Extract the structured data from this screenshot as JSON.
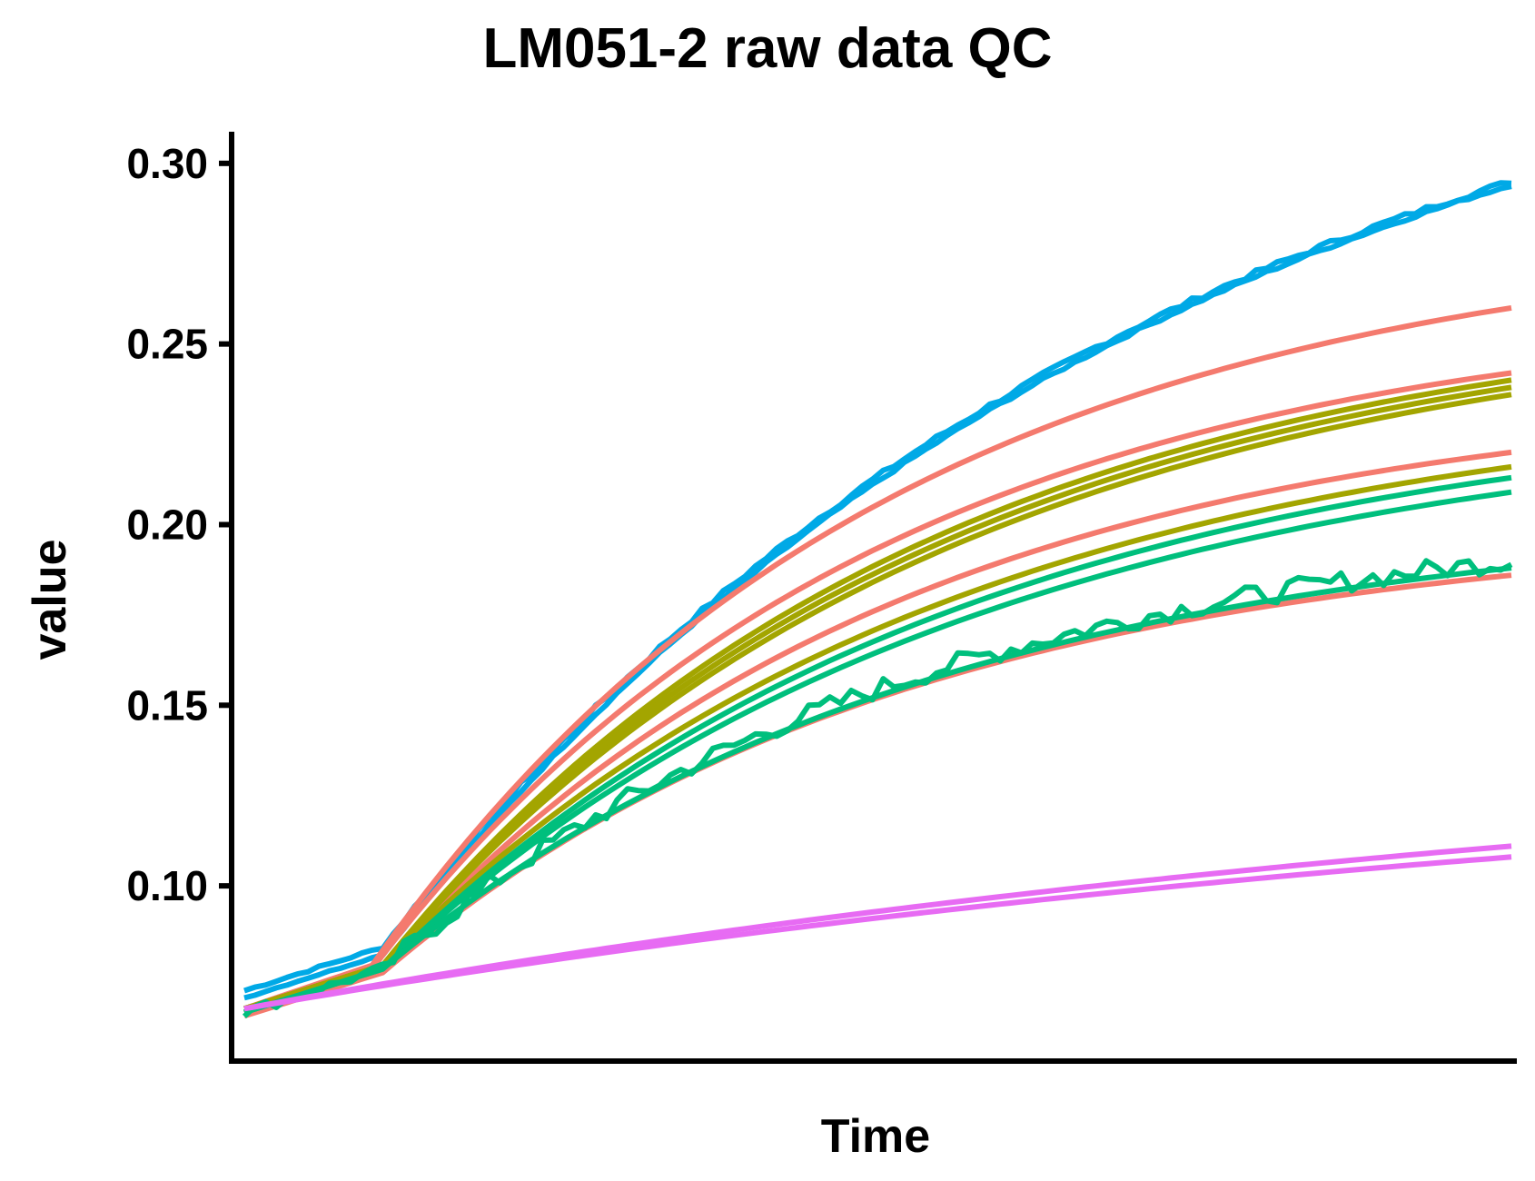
{
  "chart_data": {
    "type": "line",
    "title": "LM051-2 raw data QC",
    "xlabel": "Time",
    "ylabel": "value",
    "x_ticks_shown": false,
    "ylim": [
      0.0515,
      0.3075
    ],
    "y_ticks": [
      "0.10",
      "0.15",
      "0.20",
      "0.25",
      "0.30"
    ],
    "y_tick_values": [
      0.1,
      0.15,
      0.2,
      0.25,
      0.3
    ],
    "grid": false,
    "legend": "none",
    "n_points": 120,
    "x_range": [
      0,
      119
    ],
    "colors": {
      "blue": "#00A9E6",
      "red": "#F47A6E",
      "olive": "#A3A500",
      "green": "#00BF7D",
      "magenta": "#E76BF3"
    },
    "series": [
      {
        "color": "blue",
        "start": 0.071,
        "end": 0.295,
        "lag": 13,
        "k": 1.45,
        "noise": 0.0015
      },
      {
        "color": "blue",
        "start": 0.069,
        "end": 0.294,
        "lag": 13,
        "k": 1.45,
        "noise": 0.0008
      },
      {
        "color": "red",
        "start": 0.066,
        "end": 0.26,
        "lag": 12,
        "k": 2.2,
        "noise": 0
      },
      {
        "color": "red",
        "start": 0.065,
        "end": 0.242,
        "lag": 12,
        "k": 2.25,
        "noise": 0
      },
      {
        "color": "red",
        "start": 0.065,
        "end": 0.22,
        "lag": 13,
        "k": 2.2,
        "noise": 0
      },
      {
        "color": "red",
        "start": 0.064,
        "end": 0.186,
        "lag": 13,
        "k": 2.15,
        "noise": 0
      },
      {
        "color": "olive",
        "start": 0.066,
        "end": 0.24,
        "lag": 13,
        "k": 2.1,
        "noise": 0
      },
      {
        "color": "olive",
        "start": 0.066,
        "end": 0.238,
        "lag": 13,
        "k": 2.05,
        "noise": 0
      },
      {
        "color": "olive",
        "start": 0.066,
        "end": 0.236,
        "lag": 13,
        "k": 2.0,
        "noise": 0
      },
      {
        "color": "olive",
        "start": 0.066,
        "end": 0.216,
        "lag": 13,
        "k": 2.0,
        "noise": 0
      },
      {
        "color": "green",
        "start": 0.065,
        "end": 0.213,
        "lag": 13,
        "k": 1.95,
        "noise": 0
      },
      {
        "color": "green",
        "start": 0.065,
        "end": 0.209,
        "lag": 13,
        "k": 1.9,
        "noise": 0
      },
      {
        "color": "green",
        "start": 0.065,
        "end": 0.19,
        "lag": 13,
        "k": 2.1,
        "noise": 0.006
      },
      {
        "color": "green",
        "start": 0.065,
        "end": 0.188,
        "lag": 13,
        "k": 2.05,
        "noise": 0
      },
      {
        "color": "magenta",
        "start": 0.066,
        "end": 0.111,
        "lag": 0,
        "k": 0.8,
        "noise": 0
      },
      {
        "color": "magenta",
        "start": 0.066,
        "end": 0.108,
        "lag": 0,
        "k": 0.8,
        "noise": 0
      }
    ]
  }
}
